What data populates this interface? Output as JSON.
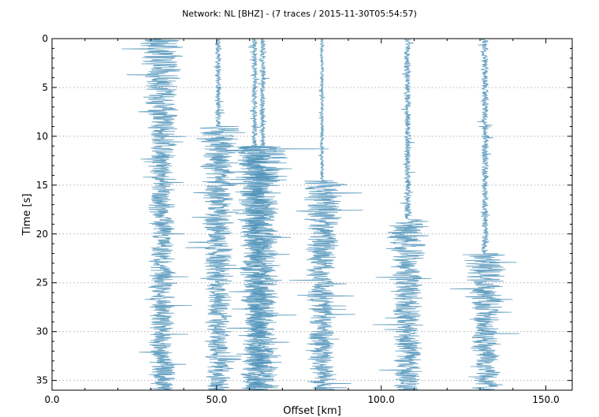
{
  "chart_data": {
    "type": "line",
    "title": "Network: NL [BHZ] - (7 traces / 2015-11-30T05:54:57)",
    "xlabel": "Offset [km]",
    "ylabel": "Time [s]",
    "xlim": [
      0,
      158
    ],
    "ylim": [
      0,
      36
    ],
    "y_inverted": true,
    "grid": "horizontal-dotted",
    "x_ticks": [
      0,
      50,
      100,
      150
    ],
    "x_tick_labels": [
      "0.0",
      "50.0",
      "100.0",
      "150.0"
    ],
    "y_ticks": [
      0,
      5,
      10,
      15,
      20,
      25,
      30,
      35
    ],
    "y_tick_labels": [
      "0",
      "5",
      "10",
      "15",
      "20",
      "25",
      "30",
      "35"
    ],
    "color": "#4d92b8",
    "series": [
      {
        "offset": 33.5,
        "onset": 0,
        "pre_amp": 6,
        "amp": 8
      },
      {
        "offset": 50.5,
        "onset": 9,
        "pre_amp": 1,
        "amp": 8
      },
      {
        "offset": 61.5,
        "onset": 11,
        "pre_amp": 1,
        "amp": 8
      },
      {
        "offset": 64.0,
        "onset": 11,
        "pre_amp": 1,
        "amp": 9
      },
      {
        "offset": 82.0,
        "onset": 14.5,
        "pre_amp": 0.6,
        "amp": 8
      },
      {
        "offset": 108.0,
        "onset": 18.5,
        "pre_amp": 1.2,
        "amp": 8
      },
      {
        "offset": 131.5,
        "onset": 22,
        "pre_amp": 1.2,
        "amp": 8
      }
    ]
  }
}
